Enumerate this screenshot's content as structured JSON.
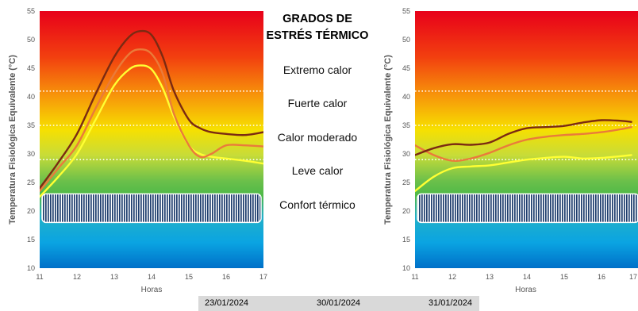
{
  "chart_data": [
    {
      "type": "line",
      "xlabel": "Horas",
      "ylabel": "Temperatura Fisiológica Equivalente (°C)",
      "x_ticks": [
        "11",
        "12",
        "13",
        "14",
        "15",
        "16",
        "17"
      ],
      "y_ticks": [
        "10",
        "15",
        "20",
        "25",
        "30",
        "35",
        "40",
        "45",
        "50",
        "55"
      ],
      "xlim": [
        11,
        17
      ],
      "ylim": [
        10,
        55
      ],
      "thresholds": [
        29,
        35,
        41
      ],
      "comfort_band": [
        18,
        23
      ],
      "series": [
        {
          "name": "23/01/2024",
          "color": "#ffff33",
          "points": [
            [
              11,
              22.5
            ],
            [
              11.5,
              26.0
            ],
            [
              12,
              30.0
            ],
            [
              12.5,
              36.0
            ],
            [
              13,
              42.0
            ],
            [
              13.4,
              44.8
            ],
            [
              13.7,
              45.5
            ],
            [
              14,
              44.8
            ],
            [
              14.3,
              41.5
            ],
            [
              14.6,
              36.5
            ],
            [
              15,
              31.5
            ],
            [
              15.3,
              30.0
            ],
            [
              15.6,
              29.5
            ],
            [
              16,
              29.2
            ],
            [
              16.5,
              28.8
            ],
            [
              17,
              28.3
            ]
          ]
        },
        {
          "name": "30/01/2024",
          "color": "#ea7b3a",
          "points": [
            [
              11,
              23.5
            ],
            [
              11.5,
              27.5
            ],
            [
              12,
              31.5
            ],
            [
              12.5,
              38.0
            ],
            [
              13,
              44.0
            ],
            [
              13.4,
              47.5
            ],
            [
              13.7,
              48.3
            ],
            [
              14,
              47.5
            ],
            [
              14.3,
              44.0
            ],
            [
              14.6,
              37.0
            ],
            [
              15,
              31.5
            ],
            [
              15.3,
              29.5
            ],
            [
              15.6,
              30.0
            ],
            [
              16,
              31.5
            ],
            [
              16.5,
              31.5
            ],
            [
              17,
              31.3
            ]
          ]
        },
        {
          "name": "31/01/2024",
          "color": "#7b2a12",
          "points": [
            [
              11,
              24.0
            ],
            [
              11.5,
              28.5
            ],
            [
              12,
              33.5
            ],
            [
              12.5,
              40.5
            ],
            [
              13,
              47.0
            ],
            [
              13.4,
              50.5
            ],
            [
              13.7,
              51.5
            ],
            [
              14,
              50.8
            ],
            [
              14.3,
              47.0
            ],
            [
              14.6,
              41.0
            ],
            [
              15,
              36.0
            ],
            [
              15.3,
              34.5
            ],
            [
              15.6,
              33.8
            ],
            [
              16,
              33.5
            ],
            [
              16.5,
              33.3
            ],
            [
              17,
              33.8
            ]
          ]
        }
      ]
    },
    {
      "type": "line",
      "xlabel": "Horas",
      "ylabel": "Temperatura Fisiológica Equivalente (°C)",
      "x_ticks": [
        "11",
        "12",
        "13",
        "14",
        "15",
        "16",
        "17"
      ],
      "y_ticks": [
        "10",
        "15",
        "20",
        "25",
        "30",
        "35",
        "40",
        "45",
        "50",
        "55"
      ],
      "xlim": [
        11,
        17
      ],
      "ylim": [
        10,
        55
      ],
      "thresholds": [
        29,
        35,
        41
      ],
      "comfort_band": [
        18,
        23
      ],
      "series": [
        {
          "name": "23/01/2024",
          "color": "#ffff33",
          "points": [
            [
              11,
              23.5
            ],
            [
              11.5,
              26.0
            ],
            [
              12,
              27.5
            ],
            [
              12.5,
              27.8
            ],
            [
              13,
              28.0
            ],
            [
              13.5,
              28.5
            ],
            [
              14,
              29.0
            ],
            [
              14.5,
              29.3
            ],
            [
              15,
              29.5
            ],
            [
              15.5,
              29.2
            ],
            [
              16,
              29.3
            ],
            [
              16.5,
              29.6
            ],
            [
              16.8,
              29.8
            ]
          ]
        },
        {
          "name": "30/01/2024",
          "color": "#ea7b3a",
          "points": [
            [
              11,
              31.5
            ],
            [
              11.5,
              29.8
            ],
            [
              12,
              28.8
            ],
            [
              12.5,
              29.2
            ],
            [
              13,
              30.2
            ],
            [
              13.5,
              31.5
            ],
            [
              14,
              32.5
            ],
            [
              14.5,
              33.0
            ],
            [
              15,
              33.3
            ],
            [
              15.5,
              33.5
            ],
            [
              16,
              33.8
            ],
            [
              16.5,
              34.3
            ],
            [
              16.8,
              34.7
            ]
          ]
        },
        {
          "name": "31/01/2024",
          "color": "#7b2a12",
          "points": [
            [
              11,
              29.8
            ],
            [
              11.5,
              31.0
            ],
            [
              12,
              31.7
            ],
            [
              12.5,
              31.6
            ],
            [
              13,
              32.0
            ],
            [
              13.5,
              33.5
            ],
            [
              14,
              34.5
            ],
            [
              14.5,
              34.7
            ],
            [
              15,
              34.9
            ],
            [
              15.5,
              35.5
            ],
            [
              16,
              35.9
            ],
            [
              16.5,
              35.8
            ],
            [
              16.8,
              35.6
            ]
          ]
        }
      ]
    }
  ],
  "center": {
    "title_line1": "GRADOS DE",
    "title_line2": "ESTRÉS TÉRMICO",
    "labels": [
      "Extremo calor",
      "Fuerte calor",
      "Calor moderado",
      "Leve calor",
      "Confort térmico"
    ]
  },
  "legend": {
    "items": [
      "23/01/2024",
      "30/01/2024",
      "31/01/2024"
    ]
  },
  "colors": {
    "hot_top": "#e8001a",
    "comfort_blue": "#00aee8",
    "threshold_dots": "#ffffff",
    "comfort_hatch": "#1f3e6e"
  }
}
